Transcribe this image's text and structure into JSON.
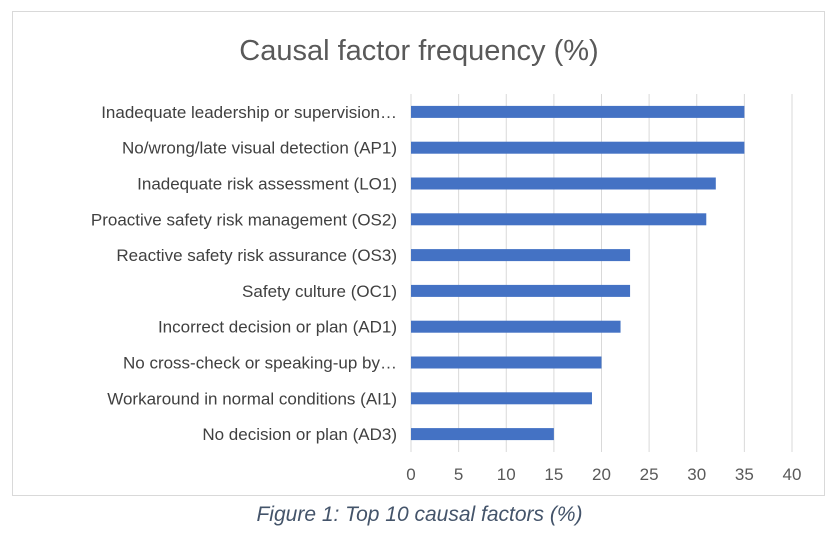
{
  "chart_data": {
    "type": "bar",
    "orientation": "horizontal",
    "title": "Causal factor frequency (%)",
    "categories": [
      "Inadequate leadership or supervision…",
      "No/wrong/late visual detection (AP1)",
      "Inadequate risk assessment (LO1)",
      "Proactive safety risk management (OS2)",
      "Reactive safety risk assurance (OS3)",
      "Safety culture (OC1)",
      "Incorrect decision or plan (AD1)",
      "No cross-check or speaking-up by…",
      "Workaround in normal conditions (AI1)",
      "No decision or plan (AD3)"
    ],
    "values": [
      35,
      35,
      32,
      31,
      23,
      23,
      22,
      20,
      19,
      15
    ],
    "xlim": [
      0,
      40
    ],
    "xticks": [
      0,
      5,
      10,
      15,
      20,
      25,
      30,
      35,
      40
    ],
    "grid": true,
    "bar_color": "#4472c4"
  },
  "caption": "Figure 1: Top 10 causal factors (%)"
}
